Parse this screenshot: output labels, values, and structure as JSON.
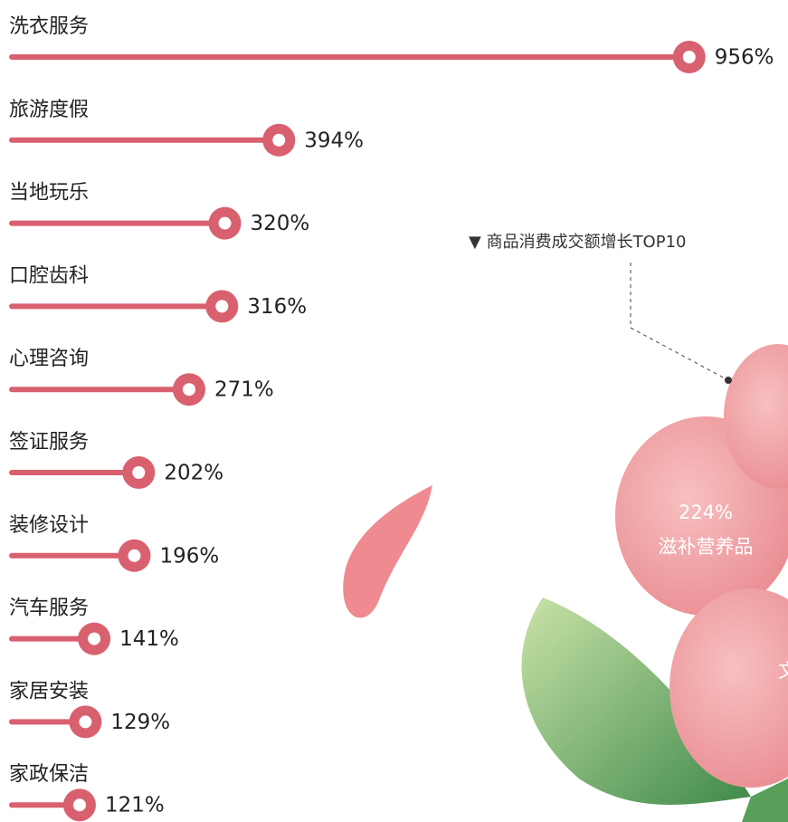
{
  "chart_data": {
    "type": "bar",
    "orientation": "horizontal",
    "categories": [
      "洗衣服务",
      "旅游度假",
      "当地玩乐",
      "口腔齿科",
      "心理咨询",
      "签证服务",
      "装修设计",
      "汽车服务",
      "家居安装",
      "家政保洁"
    ],
    "values": [
      956,
      394,
      320,
      316,
      271,
      202,
      196,
      141,
      129,
      121
    ],
    "value_labels": [
      "956%",
      "394%",
      "320%",
      "316%",
      "271%",
      "202%",
      "196%",
      "141%",
      "129%",
      "121%"
    ],
    "color": "#d9606f",
    "annotations": [
      "▼ 商品消费成交额增长TOP10",
      "224%",
      "滋补营养品",
      "文"
    ]
  }
}
